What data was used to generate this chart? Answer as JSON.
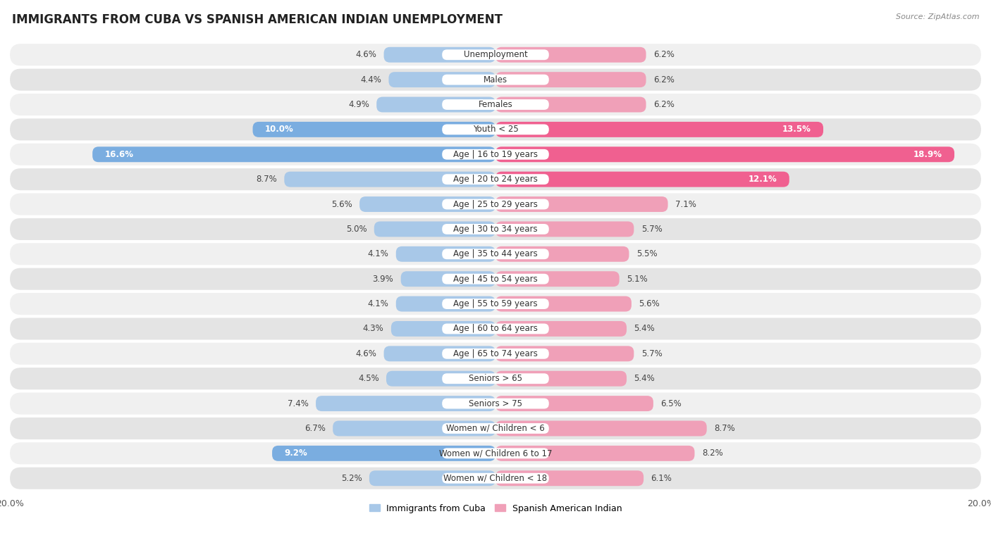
{
  "title": "IMMIGRANTS FROM CUBA VS SPANISH AMERICAN INDIAN UNEMPLOYMENT",
  "source": "Source: ZipAtlas.com",
  "categories": [
    "Unemployment",
    "Males",
    "Females",
    "Youth < 25",
    "Age | 16 to 19 years",
    "Age | 20 to 24 years",
    "Age | 25 to 29 years",
    "Age | 30 to 34 years",
    "Age | 35 to 44 years",
    "Age | 45 to 54 years",
    "Age | 55 to 59 years",
    "Age | 60 to 64 years",
    "Age | 65 to 74 years",
    "Seniors > 65",
    "Seniors > 75",
    "Women w/ Children < 6",
    "Women w/ Children 6 to 17",
    "Women w/ Children < 18"
  ],
  "cuba_values": [
    4.6,
    4.4,
    4.9,
    10.0,
    16.6,
    8.7,
    5.6,
    5.0,
    4.1,
    3.9,
    4.1,
    4.3,
    4.6,
    4.5,
    7.4,
    6.7,
    9.2,
    5.2
  ],
  "spanish_values": [
    6.2,
    6.2,
    6.2,
    13.5,
    18.9,
    12.1,
    7.1,
    5.7,
    5.5,
    5.1,
    5.6,
    5.4,
    5.7,
    5.4,
    6.5,
    8.7,
    8.2,
    6.1
  ],
  "cuba_color": "#a8c8e8",
  "spanish_color": "#f0a0b8",
  "cuba_color_strong": "#7aade0",
  "spanish_color_strong": "#f06090",
  "row_bg_odd": "#f0f0f0",
  "row_bg_even": "#e4e4e4",
  "axis_limit": 20.0,
  "legend_cuba": "Immigrants from Cuba",
  "legend_spanish": "Spanish American Indian",
  "title_fontsize": 12,
  "label_fontsize": 8.5,
  "value_fontsize": 8.5,
  "bar_height": 0.62
}
